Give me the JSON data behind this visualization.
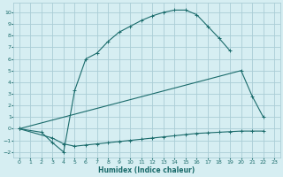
{
  "xlabel": "Humidex (Indice chaleur)",
  "bg_color": "#d6eef2",
  "grid_color": "#aacdd6",
  "line_color": "#1a6b6b",
  "xlim": [
    -0.5,
    23.5
  ],
  "ylim": [
    -2.5,
    10.8
  ],
  "xticks": [
    0,
    1,
    2,
    3,
    4,
    5,
    6,
    7,
    8,
    9,
    10,
    11,
    12,
    13,
    14,
    15,
    16,
    17,
    18,
    19,
    20,
    21,
    22,
    23
  ],
  "yticks": [
    -2,
    -1,
    0,
    1,
    2,
    3,
    4,
    5,
    6,
    7,
    8,
    9,
    10
  ],
  "curve1_x": [
    0,
    2,
    3,
    4,
    5,
    6,
    7,
    8,
    9,
    10,
    11,
    12,
    13,
    14,
    15,
    16,
    17,
    18,
    19
  ],
  "curve1_y": [
    0,
    -0.3,
    -1.2,
    -2.0,
    3.3,
    6.0,
    6.5,
    7.5,
    8.3,
    8.8,
    9.3,
    9.7,
    10.0,
    10.2,
    10.2,
    9.8,
    8.8,
    7.8,
    6.7
  ],
  "curve2_x": [
    0,
    20,
    21,
    22
  ],
  "curve2_y": [
    0,
    5.0,
    2.8,
    1.0
  ],
  "curve3_x": [
    0,
    3,
    4,
    5,
    6,
    7,
    8,
    9,
    10,
    11,
    12,
    13,
    14,
    15,
    16,
    17,
    18,
    19,
    20,
    21,
    22
  ],
  "curve3_y": [
    0,
    -0.8,
    -1.3,
    -1.5,
    -1.4,
    -1.3,
    -1.2,
    -1.1,
    -1.0,
    -0.9,
    -0.8,
    -0.7,
    -0.6,
    -0.5,
    -0.4,
    -0.35,
    -0.3,
    -0.25,
    -0.2,
    -0.2,
    -0.2
  ]
}
